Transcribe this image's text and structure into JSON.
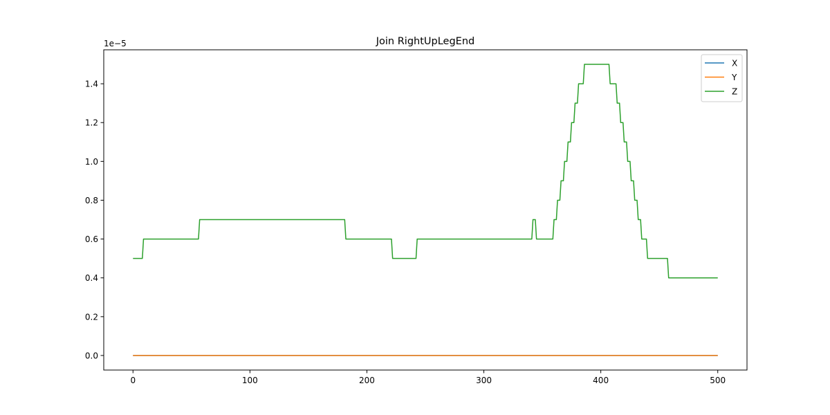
{
  "chart_data": {
    "type": "line",
    "title": "Join RightUpLegEnd",
    "xlabel": "",
    "ylabel": "",
    "y_offset_label": "1e−5",
    "y_scale": 1e-05,
    "xlim": [
      -25,
      525
    ],
    "ylim": [
      -0.075,
      1.575
    ],
    "x_ticks": [
      0,
      100,
      200,
      300,
      400,
      500
    ],
    "x_tick_labels": [
      "0",
      "100",
      "200",
      "300",
      "400",
      "500"
    ],
    "y_ticks": [
      0.0,
      0.2,
      0.4,
      0.6,
      0.8,
      1.0,
      1.2,
      1.4
    ],
    "y_tick_labels": [
      "0.0",
      "0.2",
      "0.4",
      "0.6",
      "0.8",
      "1.0",
      "1.2",
      "1.4"
    ],
    "grid": false,
    "legend_position": "top-right",
    "series": [
      {
        "name": "X",
        "color": "#1f77b4",
        "points": [
          [
            0,
            0
          ],
          [
            500,
            0
          ]
        ]
      },
      {
        "name": "Y",
        "color": "#ff7f0e",
        "points": [
          [
            0,
            0
          ],
          [
            500,
            0
          ]
        ]
      },
      {
        "name": "Z",
        "color": "#2ca02c",
        "points": [
          [
            0,
            0.5
          ],
          [
            8,
            0.5
          ],
          [
            9,
            0.6
          ],
          [
            56,
            0.6
          ],
          [
            57,
            0.7
          ],
          [
            181,
            0.7
          ],
          [
            182,
            0.6
          ],
          [
            221,
            0.6
          ],
          [
            222,
            0.5
          ],
          [
            242,
            0.5
          ],
          [
            243,
            0.6
          ],
          [
            341,
            0.6
          ],
          [
            342,
            0.7
          ],
          [
            344,
            0.7
          ],
          [
            345,
            0.6
          ],
          [
            359,
            0.6
          ],
          [
            360,
            0.7
          ],
          [
            362,
            0.7
          ],
          [
            363,
            0.8
          ],
          [
            365,
            0.8
          ],
          [
            366,
            0.9
          ],
          [
            368,
            0.9
          ],
          [
            369,
            1.0
          ],
          [
            371,
            1.0
          ],
          [
            372,
            1.1
          ],
          [
            374,
            1.1
          ],
          [
            375,
            1.2
          ],
          [
            377,
            1.2
          ],
          [
            378,
            1.3
          ],
          [
            380,
            1.3
          ],
          [
            381,
            1.4
          ],
          [
            385,
            1.4
          ],
          [
            386,
            1.5
          ],
          [
            407,
            1.5
          ],
          [
            408,
            1.4
          ],
          [
            413,
            1.4
          ],
          [
            414,
            1.3
          ],
          [
            416,
            1.3
          ],
          [
            417,
            1.2
          ],
          [
            419,
            1.2
          ],
          [
            420,
            1.1
          ],
          [
            422,
            1.1
          ],
          [
            423,
            1.0
          ],
          [
            425,
            1.0
          ],
          [
            426,
            0.9
          ],
          [
            428,
            0.9
          ],
          [
            429,
            0.8
          ],
          [
            431,
            0.8
          ],
          [
            432,
            0.7
          ],
          [
            434,
            0.7
          ],
          [
            435,
            0.6
          ],
          [
            439,
            0.6
          ],
          [
            440,
            0.5
          ],
          [
            457,
            0.5
          ],
          [
            458,
            0.4
          ],
          [
            500,
            0.4
          ]
        ]
      }
    ]
  }
}
